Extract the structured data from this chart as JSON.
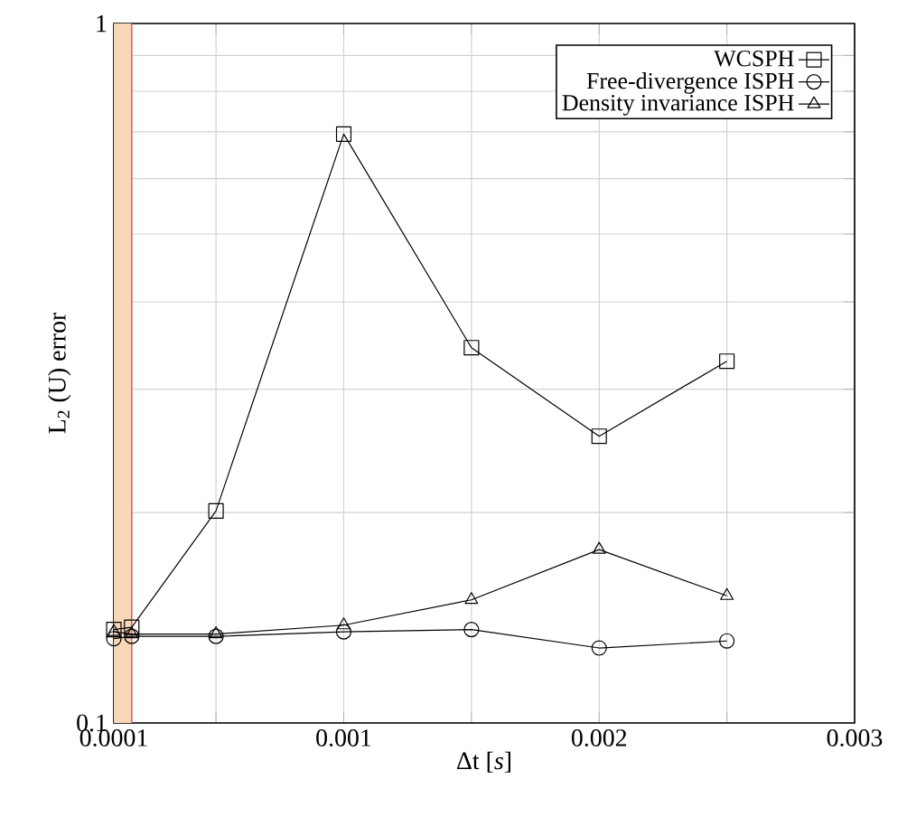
{
  "chart_data": {
    "type": "line",
    "xlabel": "Δt [*s*]",
    "ylabel": "L$_{2}$ (U) error",
    "x": [
      0.0001,
      0.00017,
      0.0005,
      0.001,
      0.0015,
      0.002,
      0.0025
    ],
    "series": [
      {
        "name": "WCSPH",
        "color": "#000000",
        "marker": "square",
        "values": [
          0.136,
          0.137,
          0.201,
          0.695,
          0.344,
          0.257,
          0.329
        ]
      },
      {
        "name": "Free-divergence ISPH",
        "color": "#000000",
        "marker": "circle",
        "values": [
          0.132,
          0.133,
          0.133,
          0.135,
          0.136,
          0.128,
          0.131
        ]
      },
      {
        "name": "Density invariance ISPH",
        "color": "#000000",
        "marker": "triangle",
        "values": [
          0.135,
          0.134,
          0.134,
          0.138,
          0.15,
          0.177,
          0.152
        ]
      }
    ],
    "xlim": [
      0.0001,
      0.003
    ],
    "xticks": [
      0.0001,
      {
        "value": 0.0005,
        "label": null
      },
      0.001,
      {
        "value": 0.0015,
        "label": null
      },
      0.002,
      {
        "value": 0.0025,
        "label": null
      },
      0.003
    ],
    "ylim": [
      0.1,
      1
    ],
    "log": "y",
    "yticks": [
      0.1,
      {
        "value": 0.2,
        "label": null
      },
      {
        "value": 0.3,
        "label": null
      },
      {
        "value": 0.4,
        "label": null
      },
      {
        "value": 0.5,
        "label": null
      },
      {
        "value": 0.6,
        "label": null
      },
      {
        "value": 0.7,
        "label": null
      },
      {
        "value": 0.8,
        "label": null
      },
      {
        "value": 0.9,
        "label": null
      },
      1
    ],
    "bands": [
      {
        "axis": "x",
        "from": 0.0001,
        "to": 0.00017,
        "color": "#f7d7b7"
      }
    ],
    "ref_lines": [
      {
        "axis": "x",
        "value": 0.00017,
        "color": "#e06060"
      }
    ],
    "grid": true,
    "legend": "top right",
    "line_style": "solid"
  }
}
